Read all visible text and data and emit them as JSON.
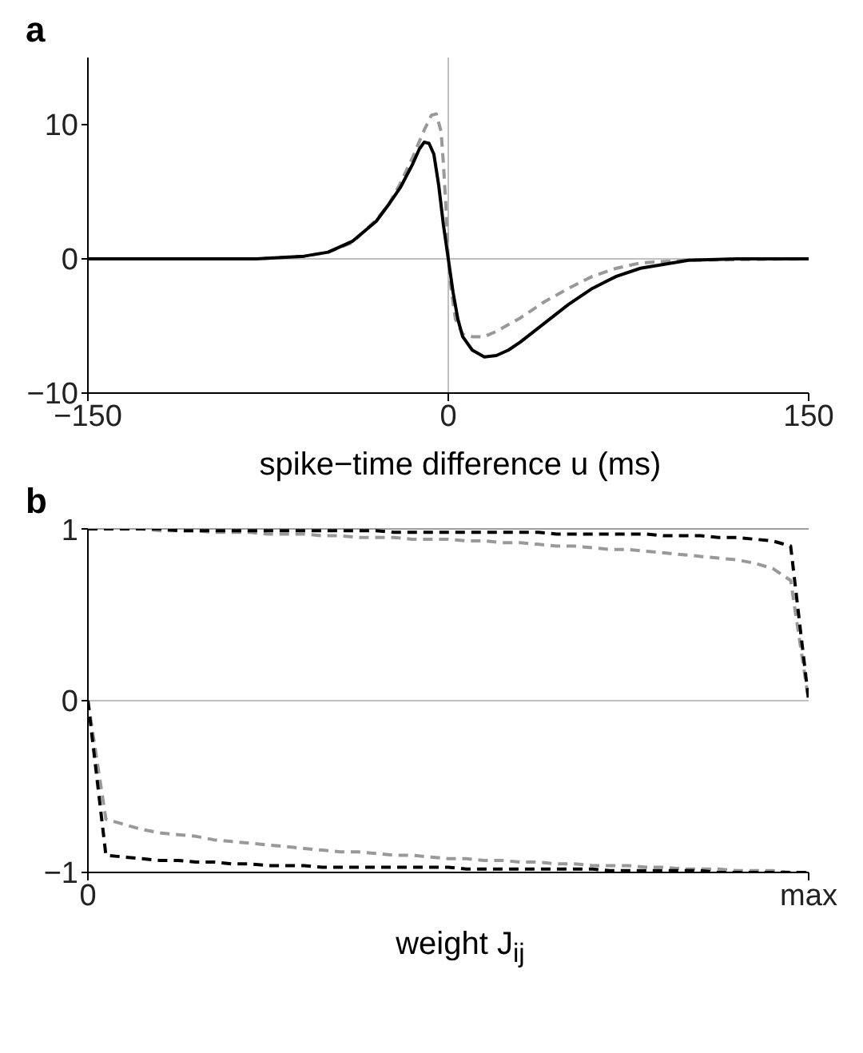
{
  "chart_data": [
    {
      "type": "line",
      "title": "a",
      "xlabel": "spike−time difference u (ms)",
      "xlim": [
        -150,
        150
      ],
      "xticks": [
        -150,
        0,
        150
      ],
      "ylim": [
        -10,
        15
      ],
      "yticks": [
        -10,
        0,
        10
      ],
      "grid": false,
      "legend": false,
      "ref_lines": [
        {
          "axis": "x",
          "value": 0,
          "color": "#c0c0c0"
        },
        {
          "axis": "y",
          "value": 0,
          "color": "#c0c0c0"
        }
      ],
      "series": [
        {
          "color": "#999999",
          "line_style": "dashed",
          "x": [
            -150,
            -100,
            -80,
            -60,
            -50,
            -40,
            -30,
            -25,
            -20,
            -15,
            -10,
            -7,
            -5,
            -3,
            -2,
            -1,
            0,
            1,
            3,
            6,
            10,
            15,
            20,
            30,
            40,
            50,
            60,
            70,
            80,
            100,
            150
          ],
          "values": [
            0,
            0,
            0,
            0.2,
            0.5,
            1.2,
            2.9,
            4,
            5.6,
            7.5,
            9.6,
            10.7,
            10.8,
            9.5,
            7,
            4,
            0,
            -2,
            -4.5,
            -5.6,
            -5.8,
            -5.8,
            -5.4,
            -4.4,
            -3.2,
            -2.2,
            -1.3,
            -0.7,
            -0.3,
            -0.1,
            0
          ]
        },
        {
          "color": "#000000",
          "line_style": "solid",
          "x": [
            -150,
            -100,
            -80,
            -60,
            -50,
            -40,
            -30,
            -25,
            -20,
            -15,
            -12,
            -10,
            -8,
            -6,
            -4,
            -2,
            0,
            2,
            4,
            6,
            10,
            15,
            20,
            25,
            30,
            40,
            50,
            60,
            70,
            80,
            90,
            100,
            120,
            150
          ],
          "values": [
            0,
            0,
            0,
            0.2,
            0.5,
            1.3,
            2.8,
            4,
            5.3,
            7,
            8.2,
            8.7,
            8.6,
            7.8,
            5.5,
            2.5,
            0,
            -2.5,
            -4.5,
            -5.8,
            -6.8,
            -7.3,
            -7.2,
            -6.8,
            -6.2,
            -4.8,
            -3.4,
            -2.2,
            -1.3,
            -0.7,
            -0.4,
            -0.1,
            0,
            0
          ]
        }
      ]
    },
    {
      "type": "line",
      "title": "b",
      "xlabel": "weight J$_{ij}$",
      "categories": [
        "0",
        null,
        null,
        null,
        null,
        null,
        null,
        null,
        null,
        null,
        null,
        null,
        null,
        null,
        null,
        null,
        null,
        null,
        null,
        null,
        null,
        null,
        null,
        null,
        null,
        null,
        null,
        null,
        null,
        null,
        null,
        null,
        null,
        null,
        null,
        null,
        null,
        null,
        null,
        null,
        "max"
      ],
      "ylim": [
        -1,
        1
      ],
      "yticks": [
        -1,
        0,
        1
      ],
      "grid": false,
      "legend": false,
      "ref_lines": [
        {
          "axis": "y",
          "value": 0,
          "color": "#c0c0c0"
        },
        {
          "axis": "y",
          "value": 1,
          "color": "#a0a0a0"
        }
      ],
      "series": [
        {
          "color": "#999999",
          "line_style": "dashed",
          "values": [
            1,
            1,
            1,
            1,
            0.99,
            0.99,
            0.99,
            0.98,
            0.98,
            0.98,
            0.97,
            0.97,
            0.97,
            0.96,
            0.96,
            0.95,
            0.95,
            0.95,
            0.94,
            0.94,
            0.94,
            0.93,
            0.93,
            0.92,
            0.92,
            0.91,
            0.9,
            0.9,
            0.89,
            0.88,
            0.88,
            0.87,
            0.86,
            0.85,
            0.84,
            0.83,
            0.82,
            0.8,
            0.77,
            0.7,
            0
          ]
        },
        {
          "color": "#999999",
          "line_style": "dashed",
          "values": [
            0,
            -0.69,
            -0.72,
            -0.75,
            -0.77,
            -0.78,
            -0.79,
            -0.81,
            -0.82,
            -0.83,
            -0.84,
            -0.85,
            -0.86,
            -0.87,
            -0.88,
            -0.88,
            -0.89,
            -0.9,
            -0.9,
            -0.91,
            -0.92,
            -0.92,
            -0.93,
            -0.93,
            -0.94,
            -0.94,
            -0.95,
            -0.95,
            -0.96,
            -0.96,
            -0.96,
            -0.97,
            -0.97,
            -0.98,
            -0.98,
            -0.98,
            -0.99,
            -0.99,
            -0.99,
            -1,
            -1
          ]
        },
        {
          "color": "#000000",
          "line_style": "dashed",
          "values": [
            1,
            1,
            1,
            1,
            1,
            0.99,
            0.99,
            0.99,
            0.99,
            0.99,
            0.99,
            0.99,
            0.99,
            0.99,
            0.99,
            0.99,
            0.99,
            0.98,
            0.98,
            0.98,
            0.98,
            0.98,
            0.98,
            0.98,
            0.98,
            0.98,
            0.97,
            0.97,
            0.97,
            0.97,
            0.97,
            0.97,
            0.96,
            0.96,
            0.96,
            0.95,
            0.95,
            0.94,
            0.93,
            0.9,
            0
          ]
        },
        {
          "color": "#000000",
          "line_style": "dashed",
          "values": [
            0,
            -0.9,
            -0.91,
            -0.92,
            -0.93,
            -0.93,
            -0.94,
            -0.94,
            -0.95,
            -0.95,
            -0.96,
            -0.96,
            -0.96,
            -0.97,
            -0.97,
            -0.97,
            -0.97,
            -0.97,
            -0.97,
            -0.97,
            -0.97,
            -0.98,
            -0.98,
            -0.98,
            -0.98,
            -0.98,
            -0.98,
            -0.98,
            -0.98,
            -0.99,
            -0.99,
            -0.99,
            -0.99,
            -0.99,
            -0.99,
            -1,
            -1,
            -1,
            -1,
            -1,
            -1
          ]
        }
      ]
    }
  ]
}
